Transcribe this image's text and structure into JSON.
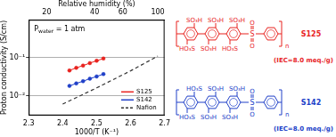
{
  "chart_data": {
    "type": "scatter",
    "x_label": "1000/T (K⁻¹)",
    "y_label": "Proton conductivity (S/cm)",
    "annotation": "Pwater = 1 atm",
    "log": "y",
    "grid": true,
    "legend": "lower right",
    "xlim": [
      2.3,
      2.7
    ],
    "xticks": [
      2.3,
      2.4,
      2.5,
      2.6,
      2.7
    ],
    "ylim": [
      0.003,
      1
    ],
    "yticks": [
      {
        "value": 0.01,
        "label": "10⁻²"
      },
      {
        "value": 0.1,
        "label": "10⁻¹"
      }
    ],
    "x2_axis": {
      "title": "Relative humidity (%)",
      "ticks": [
        20,
        40,
        60,
        100
      ],
      "positions": [
        2.353,
        2.494,
        2.577,
        2.68
      ]
    },
    "series": [
      {
        "name": "S125",
        "color": "#e8231f",
        "marker": "circle",
        "line_style": "solid",
        "x": [
          2.42,
          2.44,
          2.46,
          2.48,
          2.5,
          2.52
        ],
        "values": [
          0.046,
          0.054,
          0.062,
          0.072,
          0.083,
          0.095
        ]
      },
      {
        "name": "S142",
        "color": "#2040c8",
        "marker": "circle",
        "line_style": "solid",
        "x": [
          2.42,
          2.44,
          2.46,
          2.48,
          2.5,
          2.52
        ],
        "values": [
          0.018,
          0.021,
          0.024,
          0.028,
          0.032,
          0.037
        ]
      },
      {
        "name": "Nafion",
        "color": "#333333",
        "marker": "none",
        "line_style": "dashed",
        "x": [
          2.4,
          2.5,
          2.6,
          2.68
        ],
        "values": [
          0.006,
          0.016,
          0.045,
          0.11
        ]
      }
    ]
  },
  "structures": [
    {
      "name": "S125",
      "iec": "(IEC=8.0 meq./g)",
      "color": "#e8231f",
      "substituents": [
        "SO₃H",
        "SO₃H",
        "SO₃H",
        "HO₃S",
        "SO₃H",
        "HO₃S"
      ],
      "linker": "S",
      "linker_oxygen": "O",
      "repeat": "n"
    },
    {
      "name": "S142",
      "iec": "(IEC=8.0 meq./g)",
      "color": "#2040c8",
      "substituents": [
        "HO₃S",
        "SO₃H",
        "SO₃H",
        "HO₃S",
        "SO₃H",
        "SO₃H"
      ],
      "linker": "S",
      "linker_oxygen": "O",
      "repeat": "n"
    }
  ]
}
